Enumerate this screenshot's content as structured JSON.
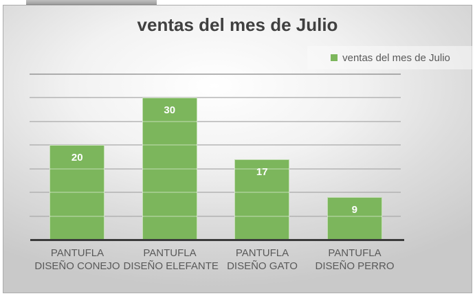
{
  "chart_data": {
    "type": "bar",
    "title": "ventas del mes de Julio",
    "legend": [
      "ventas del mes de Julio"
    ],
    "legend_position": "top-right",
    "categories": [
      "PANTUFLA DISEÑO CONEJO",
      "PANTUFLA DISEÑO ELEFANTE",
      "PANTUFLA DISEÑO GATO",
      "PANTUFLA DISEÑO PERRO"
    ],
    "category_label_lines": [
      [
        "PANTUFLA",
        "DISEÑO CONEJO"
      ],
      [
        "PANTUFLA",
        "DISEÑO ELEFANTE"
      ],
      [
        "PANTUFLA",
        "DISEÑO GATO"
      ],
      [
        "PANTUFLA",
        "DISEÑO PERRO"
      ]
    ],
    "values": [
      20,
      30,
      17,
      9
    ],
    "data_labels": "inside-end",
    "xlabel": "",
    "ylabel": "",
    "ylim": [
      0,
      35
    ],
    "gridline_step": 5,
    "grid": true
  },
  "colors": {
    "bar": "#7CB65C",
    "title_text": "#404040",
    "axis_text": "#595959",
    "axis_line": "#3A3A3A",
    "gridline": "#A6A6A6",
    "data_label_text": "#FFFFFF",
    "legend_background": "#F5F5F5",
    "chart_border": "#ABABAB"
  }
}
